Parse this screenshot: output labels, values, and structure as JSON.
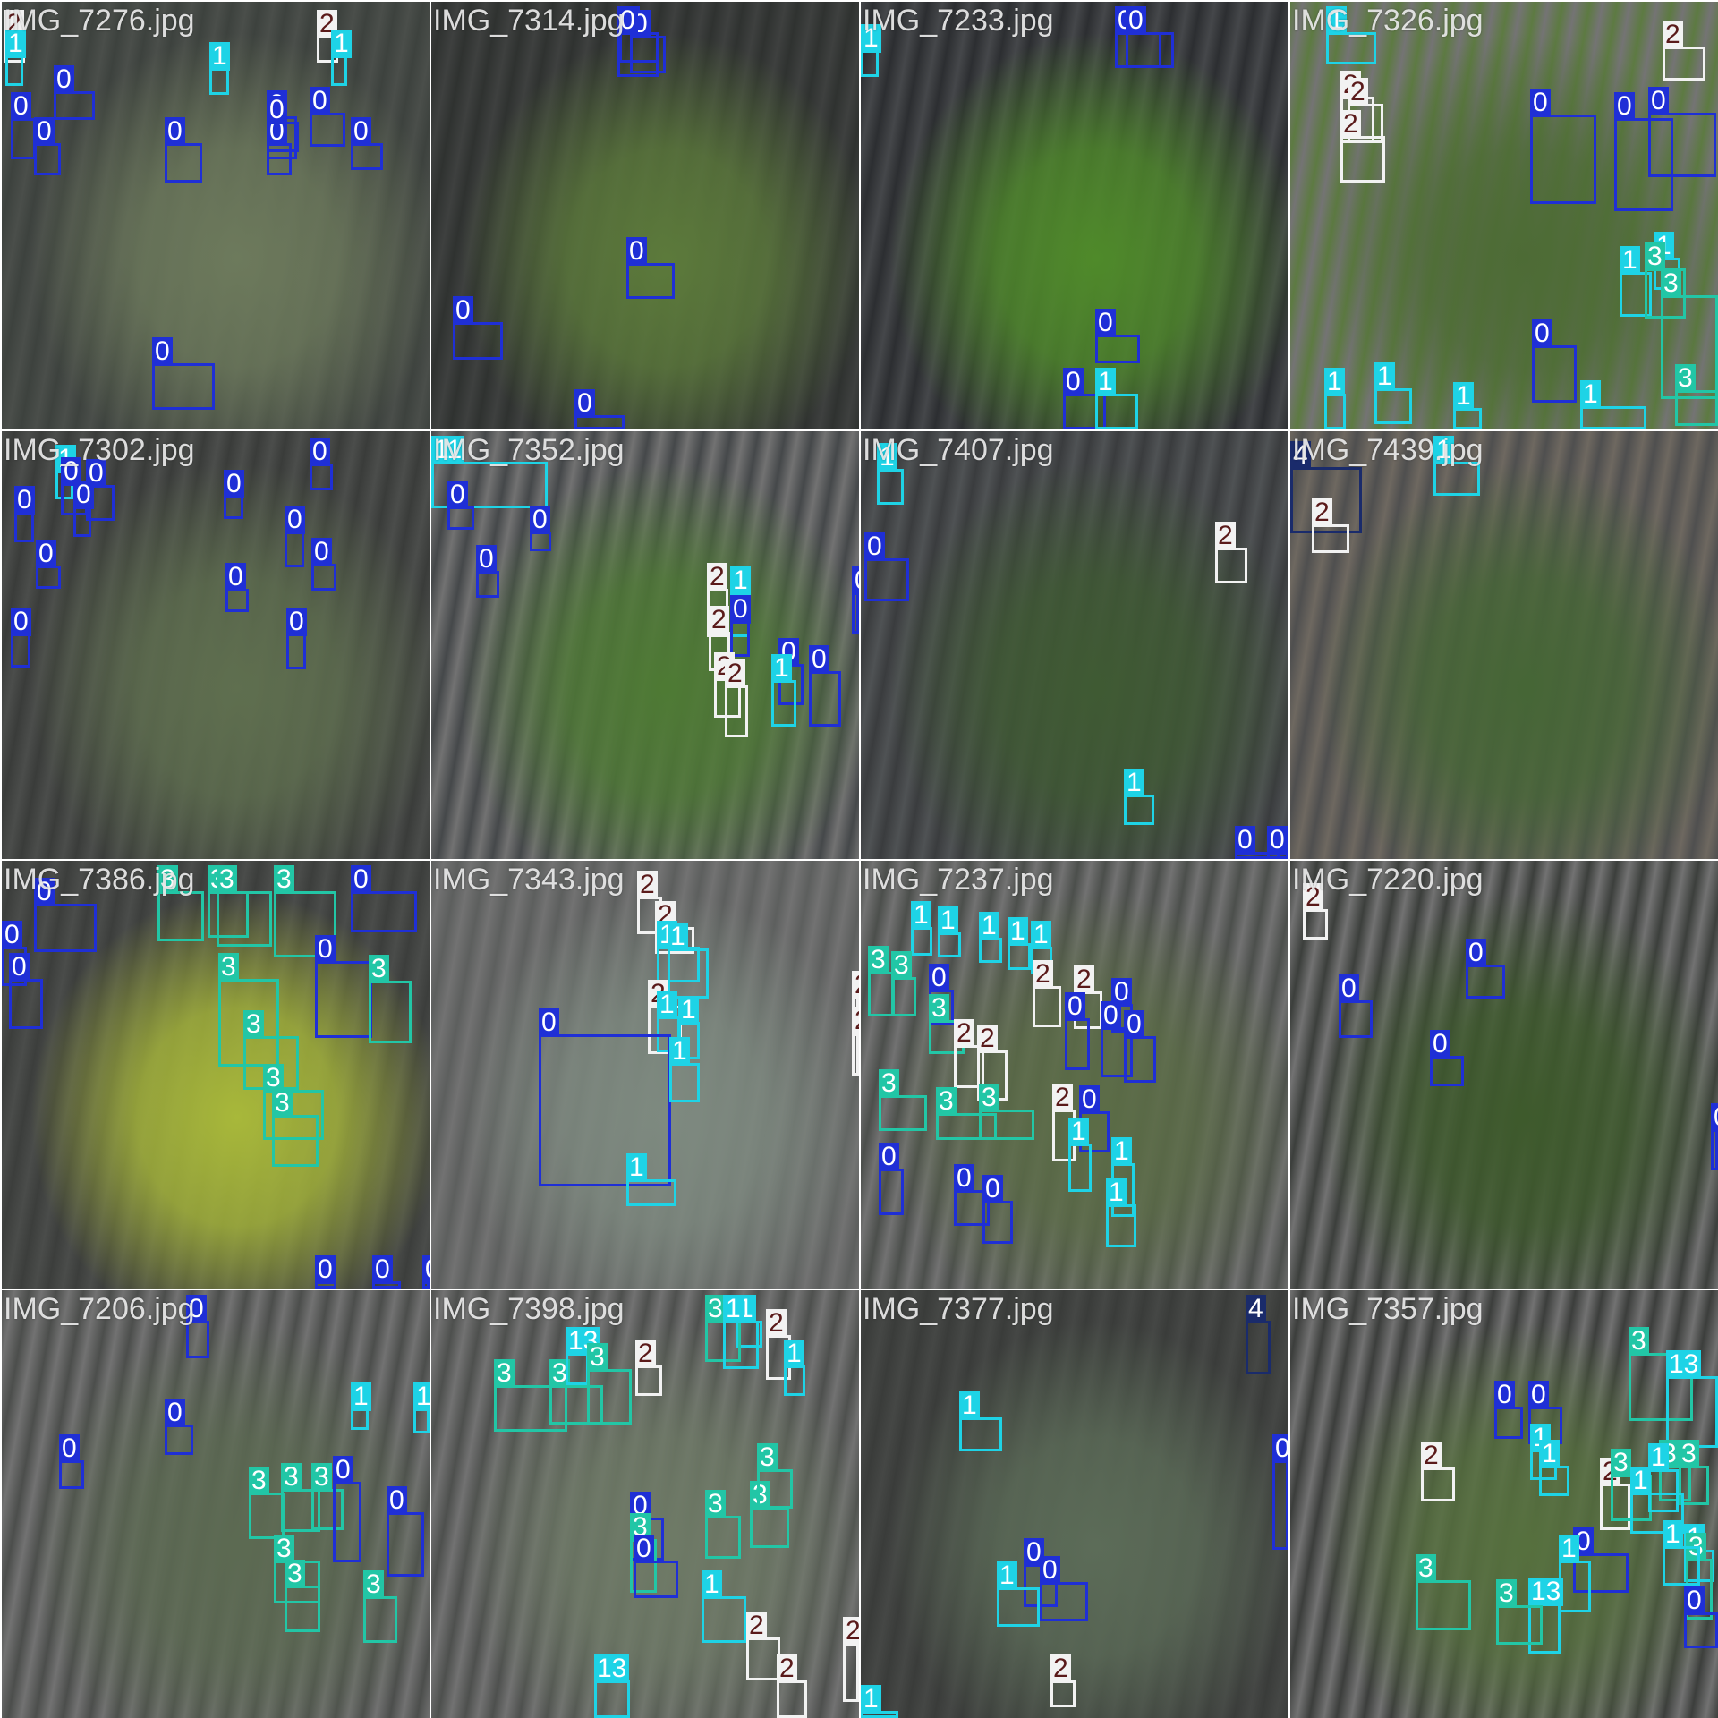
{
  "tiles": [
    {
      "filename": "IMG_7276.jpg",
      "colors": [
        "#4a4e4a",
        "#6d7a5c",
        "#3d423e"
      ],
      "boxes": [
        {
          "cls": "2"
        },
        {
          "cls": "1"
        },
        {
          "cls": "1"
        },
        {
          "cls": "2"
        },
        {
          "cls": "1"
        },
        {
          "cls": "0"
        },
        {
          "cls": "0"
        },
        {
          "cls": "0"
        },
        {
          "cls": "0"
        },
        {
          "cls": "0"
        },
        {
          "cls": "0"
        },
        {
          "cls": "0"
        },
        {
          "cls": "0"
        },
        {
          "cls": "0"
        },
        {
          "cls": "0"
        }
      ]
    },
    {
      "filename": "IMG_7314.jpg",
      "colors": [
        "#3e403f",
        "#5c7a3b",
        "#2f3230"
      ],
      "boxes": [
        {
          "cls": "0"
        },
        {
          "cls": "0"
        },
        {
          "cls": "0"
        },
        {
          "cls": "0"
        },
        {
          "cls": "0"
        },
        {
          "cls": "0"
        }
      ]
    },
    {
      "filename": "IMG_7233.jpg",
      "colors": [
        "#45474a",
        "#4f8a2a",
        "#2c2e31"
      ],
      "boxes": [
        {
          "cls": "0"
        },
        {
          "cls": "0"
        },
        {
          "cls": "1"
        },
        {
          "cls": "0"
        },
        {
          "cls": "0"
        },
        {
          "cls": "1"
        }
      ]
    },
    {
      "filename": "IMG_7326.jpg",
      "colors": [
        "#5d7a42",
        "#4d6b35",
        "#747474"
      ],
      "boxes": [
        {
          "cls": "1"
        },
        {
          "cls": "2"
        },
        {
          "cls": "2"
        },
        {
          "cls": "2"
        },
        {
          "cls": "2"
        },
        {
          "cls": "0"
        },
        {
          "cls": "0"
        },
        {
          "cls": "0"
        },
        {
          "cls": "1"
        },
        {
          "cls": "1"
        },
        {
          "cls": "3"
        },
        {
          "cls": "0"
        },
        {
          "cls": "1"
        },
        {
          "cls": "1"
        },
        {
          "cls": "1"
        },
        {
          "cls": "3"
        },
        {
          "cls": "3"
        },
        {
          "cls": "1"
        }
      ]
    },
    {
      "filename": "IMG_7302.jpg",
      "colors": [
        "#4b4d4b",
        "#5f6f4f",
        "#3a3c3a"
      ],
      "boxes": [
        {
          "cls": "1"
        },
        {
          "cls": "0"
        },
        {
          "cls": "0"
        },
        {
          "cls": "0"
        },
        {
          "cls": "0"
        },
        {
          "cls": "0"
        },
        {
          "cls": "0"
        },
        {
          "cls": "0"
        },
        {
          "cls": "0"
        },
        {
          "cls": "0"
        },
        {
          "cls": "0"
        },
        {
          "cls": "0"
        },
        {
          "cls": "0"
        }
      ]
    },
    {
      "filename": "IMG_7352.jpg",
      "colors": [
        "#45484a",
        "#4e7a34",
        "#727272"
      ],
      "boxes": [
        {
          "cls": "11"
        },
        {
          "cls": "0"
        },
        {
          "cls": "0"
        },
        {
          "cls": "0"
        },
        {
          "cls": "2"
        },
        {
          "cls": "1"
        },
        {
          "cls": "2"
        },
        {
          "cls": "0"
        },
        {
          "cls": "2"
        },
        {
          "cls": "0"
        },
        {
          "cls": "1"
        },
        {
          "cls": "0"
        },
        {
          "cls": "2"
        },
        {
          "cls": "0"
        }
      ]
    },
    {
      "filename": "IMG_7407.jpg",
      "colors": [
        "#4f5254",
        "#3f5a33",
        "#3a3c3e"
      ],
      "boxes": [
        {
          "cls": "1"
        },
        {
          "cls": "0"
        },
        {
          "cls": "2"
        },
        {
          "cls": "1"
        },
        {
          "cls": "0"
        },
        {
          "cls": "0"
        }
      ]
    },
    {
      "filename": "IMG_7439.jpg",
      "colors": [
        "#6e6860",
        "#466636",
        "#4f4f4f"
      ],
      "boxes": [
        {
          "cls": "4"
        },
        {
          "cls": "2"
        },
        {
          "cls": "1"
        }
      ]
    },
    {
      "filename": "IMG_7386.jpg",
      "colors": [
        "#4a4c4a",
        "#a8b83a",
        "#3c3e3c"
      ],
      "boxes": [
        {
          "cls": "0"
        },
        {
          "cls": "0"
        },
        {
          "cls": "0"
        },
        {
          "cls": "3"
        },
        {
          "cls": "3"
        },
        {
          "cls": "3"
        },
        {
          "cls": "3"
        },
        {
          "cls": "0"
        },
        {
          "cls": "0"
        },
        {
          "cls": "3"
        },
        {
          "cls": "3"
        },
        {
          "cls": "3"
        },
        {
          "cls": "3"
        },
        {
          "cls": "3"
        },
        {
          "cls": "0"
        },
        {
          "cls": "0"
        },
        {
          "cls": "0"
        },
        {
          "cls": "0"
        }
      ]
    },
    {
      "filename": "IMG_7343.jpg",
      "colors": [
        "#5d5f5e",
        "#7e8a80",
        "#727272"
      ],
      "boxes": [
        {
          "cls": "2"
        },
        {
          "cls": "2"
        },
        {
          "cls": "1"
        },
        {
          "cls": "1"
        },
        {
          "cls": "2"
        },
        {
          "cls": "1"
        },
        {
          "cls": "1"
        },
        {
          "cls": "0"
        },
        {
          "cls": "1"
        },
        {
          "cls": "1"
        },
        {
          "cls": "2"
        },
        {
          "cls": "2"
        }
      ]
    },
    {
      "filename": "IMG_7237.jpg",
      "colors": [
        "#4c4f4c",
        "#5b6c46",
        "#727272"
      ],
      "boxes": [
        {
          "cls": "1"
        },
        {
          "cls": "1"
        },
        {
          "cls": "1"
        },
        {
          "cls": "1"
        },
        {
          "cls": "1"
        },
        {
          "cls": "3"
        },
        {
          "cls": "3"
        },
        {
          "cls": "0"
        },
        {
          "cls": "2"
        },
        {
          "cls": "2"
        },
        {
          "cls": "0"
        },
        {
          "cls": "3"
        },
        {
          "cls": "2"
        },
        {
          "cls": "2"
        },
        {
          "cls": "0"
        },
        {
          "cls": "0"
        },
        {
          "cls": "0"
        },
        {
          "cls": "3"
        },
        {
          "cls": "3"
        },
        {
          "cls": "3"
        },
        {
          "cls": "2"
        },
        {
          "cls": "0"
        },
        {
          "cls": "1"
        },
        {
          "cls": "1"
        },
        {
          "cls": "0"
        },
        {
          "cls": "0"
        },
        {
          "cls": "0"
        },
        {
          "cls": "1"
        }
      ]
    },
    {
      "filename": "IMG_7220.jpg",
      "colors": [
        "#3c3f3c",
        "#3e5a2c",
        "#727272"
      ],
      "boxes": [
        {
          "cls": "2"
        },
        {
          "cls": "0"
        },
        {
          "cls": "0"
        },
        {
          "cls": "0"
        },
        {
          "cls": "0"
        }
      ]
    },
    {
      "filename": "IMG_7206.jpg",
      "colors": [
        "#4c4e4c",
        "#5c6a52",
        "#727272"
      ],
      "boxes": [
        {
          "cls": "0"
        },
        {
          "cls": "0"
        },
        {
          "cls": "0"
        },
        {
          "cls": "1"
        },
        {
          "cls": "1"
        },
        {
          "cls": "3"
        },
        {
          "cls": "3"
        },
        {
          "cls": "3"
        },
        {
          "cls": "0"
        },
        {
          "cls": "3"
        },
        {
          "cls": "0"
        },
        {
          "cls": "3"
        },
        {
          "cls": "3"
        }
      ]
    },
    {
      "filename": "IMG_7398.jpg",
      "colors": [
        "#4e504e",
        "#6e7a66",
        "#727272"
      ],
      "boxes": [
        {
          "cls": "3"
        },
        {
          "cls": "3"
        },
        {
          "cls": "13"
        },
        {
          "cls": "3"
        },
        {
          "cls": "2"
        },
        {
          "cls": "2"
        },
        {
          "cls": "1"
        },
        {
          "cls": "3"
        },
        {
          "cls": "1"
        },
        {
          "cls": "1"
        },
        {
          "cls": "0"
        },
        {
          "cls": "3"
        },
        {
          "cls": "0"
        },
        {
          "cls": "3"
        },
        {
          "cls": "3"
        },
        {
          "cls": "1"
        },
        {
          "cls": "3"
        },
        {
          "cls": "13"
        },
        {
          "cls": "2"
        },
        {
          "cls": "2"
        },
        {
          "cls": "2"
        }
      ]
    },
    {
      "filename": "IMG_7377.jpg",
      "colors": [
        "#454745",
        "#5c6c58",
        "#3a3c3a"
      ],
      "boxes": [
        {
          "cls": "4"
        },
        {
          "cls": "1"
        },
        {
          "cls": "0"
        },
        {
          "cls": "0"
        },
        {
          "cls": "1"
        },
        {
          "cls": "0"
        },
        {
          "cls": "1"
        },
        {
          "cls": "2"
        }
      ]
    },
    {
      "filename": "IMG_7357.jpg",
      "colors": [
        "#727272",
        "#56703e",
        "#3c3e3c"
      ],
      "boxes": [
        {
          "cls": "3"
        },
        {
          "cls": "13"
        },
        {
          "cls": "0"
        },
        {
          "cls": "0"
        },
        {
          "cls": "1"
        },
        {
          "cls": "2"
        },
        {
          "cls": "1"
        },
        {
          "cls": "2"
        },
        {
          "cls": "3"
        },
        {
          "cls": "3"
        },
        {
          "cls": "3"
        },
        {
          "cls": "1"
        },
        {
          "cls": "1"
        },
        {
          "cls": "3"
        },
        {
          "cls": "0"
        },
        {
          "cls": "1"
        },
        {
          "cls": "1"
        },
        {
          "cls": "3"
        },
        {
          "cls": "13"
        },
        {
          "cls": "3"
        },
        {
          "cls": "1"
        },
        {
          "cls": "0"
        }
      ]
    }
  ]
}
